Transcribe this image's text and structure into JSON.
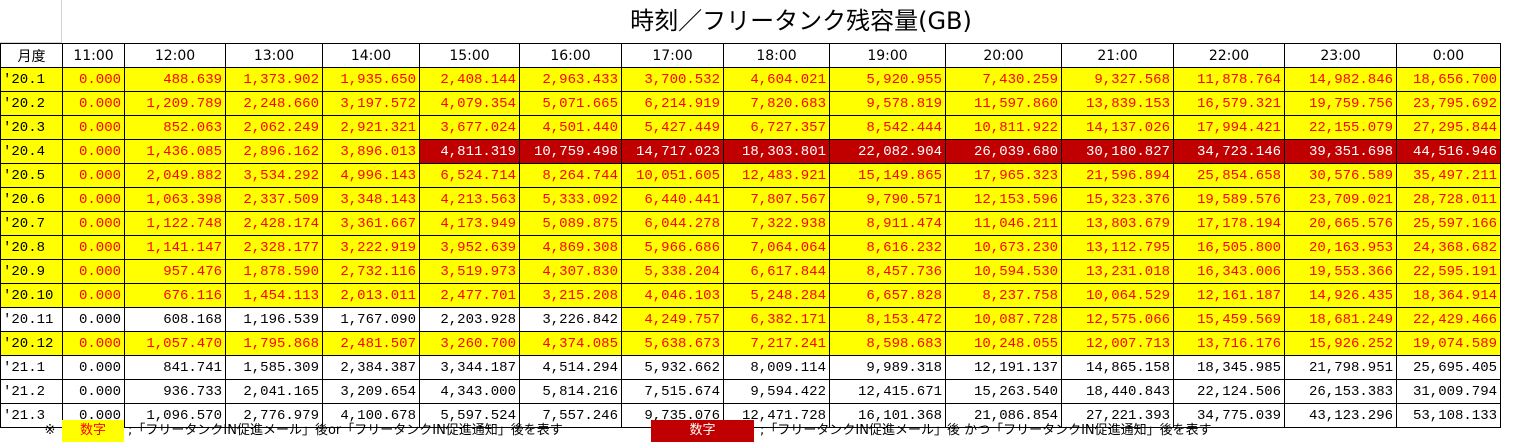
{
  "title": "時刻／フリータンク残容量(GB)",
  "header": {
    "month_label": "月度",
    "hours": [
      "11:00",
      "12:00",
      "13:00",
      "14:00",
      "15:00",
      "16:00",
      "17:00",
      "18:00",
      "19:00",
      "20:00",
      "21:00",
      "22:00",
      "23:00",
      "0:00"
    ]
  },
  "rows": [
    {
      "month": "'20.1",
      "values": [
        "0.000",
        "488.639",
        "1,373.902",
        "1,935.650",
        "2,408.144",
        "2,963.433",
        "3,700.532",
        "4,604.021",
        "5,920.955",
        "7,430.259",
        "9,327.568",
        "11,878.764",
        "14,982.846",
        "18,656.700"
      ],
      "styles": "yyyyyyyyyyyyyyy"
    },
    {
      "month": "'20.2",
      "values": [
        "0.000",
        "1,209.789",
        "2,248.660",
        "3,197.572",
        "4,079.354",
        "5,071.665",
        "6,214.919",
        "7,820.683",
        "9,578.819",
        "11,597.860",
        "13,839.153",
        "16,579.321",
        "19,759.756",
        "23,795.692"
      ],
      "styles": "yyyyyyyyyyyyyyy"
    },
    {
      "month": "'20.3",
      "values": [
        "0.000",
        "852.063",
        "2,062.249",
        "2,921.321",
        "3,677.024",
        "4,501.440",
        "5,427.449",
        "6,727.357",
        "8,542.444",
        "10,811.922",
        "14,137.026",
        "17,994.421",
        "22,155.079",
        "27,295.844"
      ],
      "styles": "yyyyyyyyyyyyyyy"
    },
    {
      "month": "'20.4",
      "values": [
        "0.000",
        "1,436.085",
        "2,896.162",
        "3,896.013",
        "4,811.319",
        "10,759.498",
        "14,717.023",
        "18,303.801",
        "22,082.904",
        "26,039.680",
        "30,180.827",
        "34,723.146",
        "39,351.698",
        "44,516.946"
      ],
      "styles": "yyyyyrrrrrrrrrr"
    },
    {
      "month": "'20.5",
      "values": [
        "0.000",
        "2,049.882",
        "3,534.292",
        "4,996.143",
        "6,524.714",
        "8,264.744",
        "10,051.605",
        "12,483.921",
        "15,149.865",
        "17,965.323",
        "21,596.894",
        "25,854.658",
        "30,576.589",
        "35,497.211"
      ],
      "styles": "yyyyyyyyyyyyyyy"
    },
    {
      "month": "'20.6",
      "values": [
        "0.000",
        "1,063.398",
        "2,337.509",
        "3,348.143",
        "4,213.563",
        "5,333.092",
        "6,440.441",
        "7,807.567",
        "9,790.571",
        "12,153.596",
        "15,323.376",
        "19,589.576",
        "23,709.021",
        "28,728.011"
      ],
      "styles": "yyyyyyyyyyyyyyy"
    },
    {
      "month": "'20.7",
      "values": [
        "0.000",
        "1,122.748",
        "2,428.174",
        "3,361.667",
        "4,173.949",
        "5,089.875",
        "6,044.278",
        "7,322.938",
        "8,911.474",
        "11,046.211",
        "13,803.679",
        "17,178.194",
        "20,665.576",
        "25,597.166"
      ],
      "styles": "yyyyyyyyyyyyyyy"
    },
    {
      "month": "'20.8",
      "values": [
        "0.000",
        "1,141.147",
        "2,328.177",
        "3,222.919",
        "3,952.639",
        "4,869.308",
        "5,966.686",
        "7,064.064",
        "8,616.232",
        "10,673.230",
        "13,112.795",
        "16,505.800",
        "20,163.953",
        "24,368.682"
      ],
      "styles": "yyyyyyyyyyyyyyy"
    },
    {
      "month": "'20.9",
      "values": [
        "0.000",
        "957.476",
        "1,878.590",
        "2,732.116",
        "3,519.973",
        "4,307.830",
        "5,338.204",
        "6,617.844",
        "8,457.736",
        "10,594.530",
        "13,231.018",
        "16,343.006",
        "19,553.366",
        "22,595.191"
      ],
      "styles": "yyyyyyyyyyyyyyy"
    },
    {
      "month": "'20.10",
      "values": [
        "0.000",
        "676.116",
        "1,454.113",
        "2,013.011",
        "2,477.701",
        "3,215.208",
        "4,046.103",
        "5,248.284",
        "6,657.828",
        "8,237.758",
        "10,064.529",
        "12,161.187",
        "14,926.435",
        "18,364.914"
      ],
      "styles": "yyyyyyyyyyyyyyy"
    },
    {
      "month": "'20.11",
      "values": [
        "0.000",
        "608.168",
        "1,196.539",
        "1,767.090",
        "2,203.928",
        "3,226.842",
        "4,249.757",
        "6,382.171",
        "8,153.472",
        "10,087.728",
        "12,575.066",
        "15,459.569",
        "18,681.249",
        "22,429.466"
      ],
      "styles": "nnnnnnnyyyyyyyy"
    },
    {
      "month": "'20.12",
      "values": [
        "0.000",
        "1,057.470",
        "1,795.868",
        "2,481.507",
        "3,260.700",
        "4,374.085",
        "5,638.673",
        "7,217.241",
        "8,598.683",
        "10,248.055",
        "12,007.713",
        "13,716.176",
        "15,926.252",
        "19,074.589"
      ],
      "styles": "yyyyyyyyyyyyyyy"
    },
    {
      "month": "'21.1",
      "values": [
        "0.000",
        "841.741",
        "1,585.309",
        "2,384.387",
        "3,344.187",
        "4,514.294",
        "5,932.662",
        "8,009.114",
        "9,989.318",
        "12,191.137",
        "14,865.158",
        "18,345.985",
        "21,798.951",
        "25,695.405"
      ],
      "styles": "nnnnnnnnnnnnnnn"
    },
    {
      "month": "'21.2",
      "values": [
        "0.000",
        "936.733",
        "2,041.165",
        "3,209.654",
        "4,343.000",
        "5,814.216",
        "7,515.674",
        "9,594.422",
        "12,415.671",
        "15,263.540",
        "18,440.843",
        "22,124.506",
        "26,153.383",
        "31,009.794"
      ],
      "styles": "nnnnnnnnnnnnnnn"
    },
    {
      "month": "'21.3",
      "values": [
        "0.000",
        "1,096.570",
        "2,776.979",
        "4,100.678",
        "5,597.524",
        "7,557.246",
        "9,735.076",
        "12,471.728",
        "16,101.368",
        "21,086.854",
        "27,221.393",
        "34,775.039",
        "43,123.296",
        "53,108.133"
      ],
      "styles": "nnnnnnnnnnnnnnn"
    }
  ],
  "legend": {
    "mark": "※",
    "swatch_yellow_text": "数字",
    "yellow_desc": ";「フリータンクIN促進メール」後or「フリータンクIN促進通知」後を表す",
    "swatch_red_text": "数字",
    "red_desc": ";「フリータンクIN促進メール」後 かつ「フリータンクIN促進通知」後を表す"
  },
  "colors": {
    "highlight_yellow": "#ffff00",
    "highlight_red": "#c00000",
    "text_red": "#ff0000"
  }
}
